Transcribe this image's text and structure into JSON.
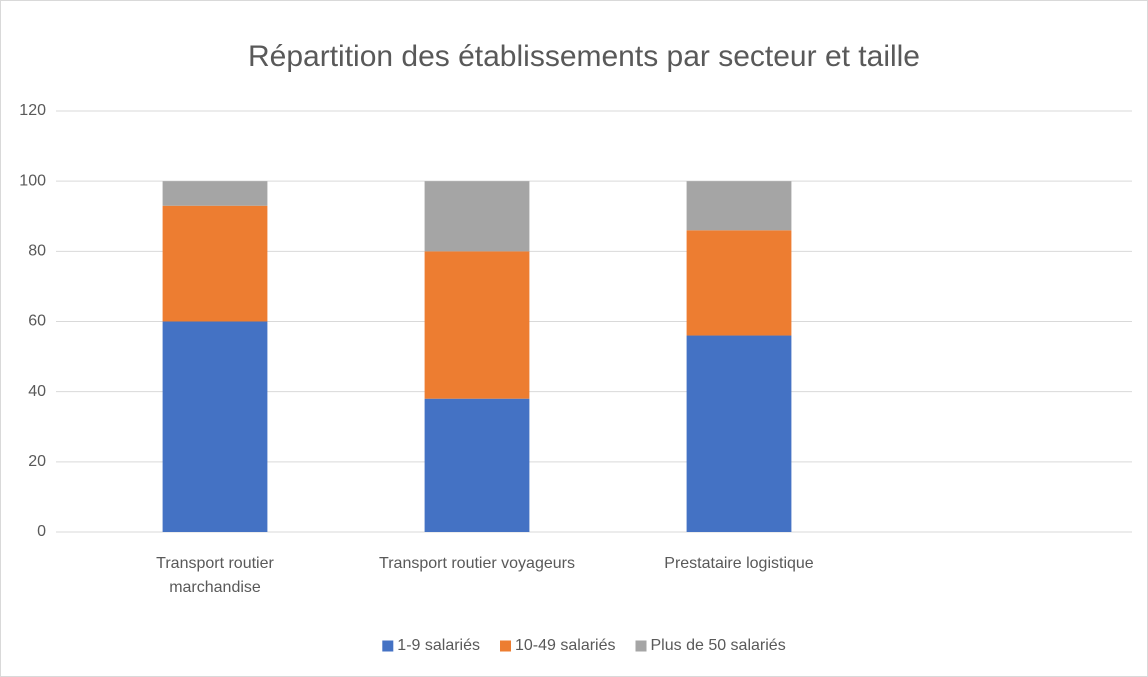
{
  "chart_data": {
    "type": "stacked_bar",
    "title": "Répartition des établissements par secteur et taille",
    "categories": [
      "Transport routier marchandise",
      "Transport routier voyageurs",
      "Prestataire logistique",
      null
    ],
    "series": [
      {
        "name": "1-9 salariés",
        "color": "#4472c4",
        "values": [
          60,
          38,
          56,
          null
        ]
      },
      {
        "name": "10-49 salariés",
        "color": "#ed7d31",
        "values": [
          33,
          42,
          30,
          null
        ]
      },
      {
        "name": "Plus de 50 salariés",
        "color": "#a5a5a5",
        "values": [
          7,
          20,
          14,
          null
        ]
      }
    ],
    "ylim": [
      0,
      120
    ],
    "yticks": [
      0,
      20,
      40,
      60,
      80,
      100,
      120
    ],
    "grid": true,
    "legend": "bottom"
  }
}
